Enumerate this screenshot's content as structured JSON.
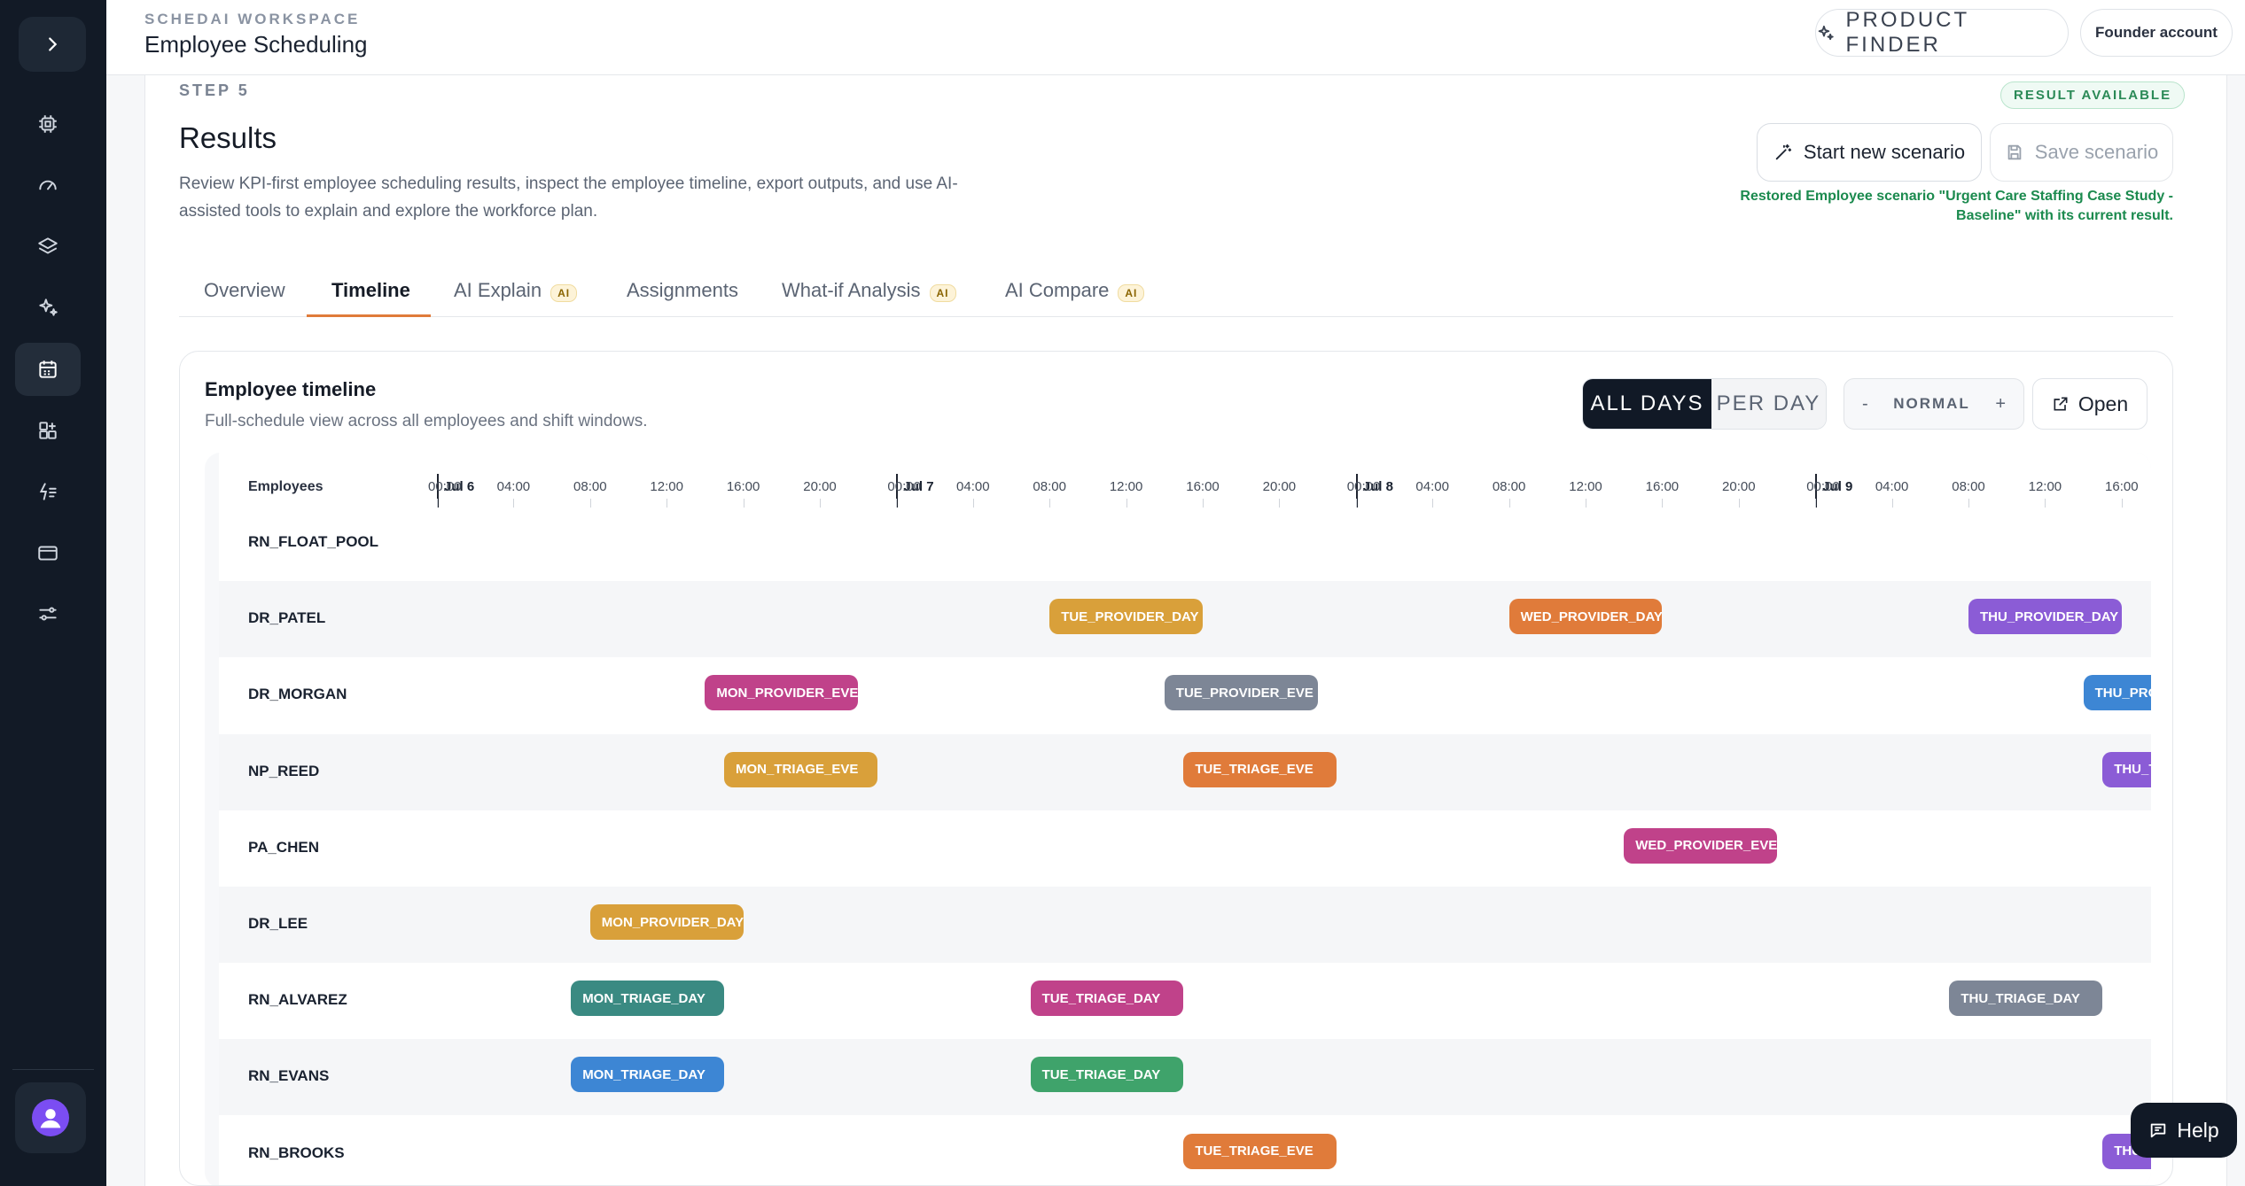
{
  "workspace": {
    "label": "SCHEDAI WORKSPACE",
    "title": "Employee Scheduling"
  },
  "topbar": {
    "product_finder": "PRODUCT FINDER",
    "account": "Founder account"
  },
  "sidebar": {
    "items": [
      {
        "icon": "chip-icon"
      },
      {
        "icon": "gauge-icon"
      },
      {
        "icon": "layers-icon"
      },
      {
        "icon": "sparkles-icon"
      },
      {
        "icon": "calendar-icon",
        "active": true
      },
      {
        "icon": "apps-icon"
      },
      {
        "icon": "zap-list-icon"
      },
      {
        "icon": "card-icon"
      },
      {
        "icon": "sliders-icon"
      }
    ]
  },
  "page": {
    "step": "STEP 5",
    "title": "Results",
    "description": "Review KPI-first employee scheduling results, inspect the employee timeline, export outputs, and use AI-assisted tools to explain and explore the workforce plan.",
    "badge": "RESULT AVAILABLE",
    "start_button": "Start new scenario",
    "save_button": "Save scenario",
    "restore_message": "Restored Employee scenario \"Urgent Care Staffing Case Study - Baseline\" with its current result."
  },
  "tabs": [
    {
      "label": "Overview",
      "ai": false
    },
    {
      "label": "Timeline",
      "ai": false,
      "active": true
    },
    {
      "label": "AI Explain",
      "ai": true
    },
    {
      "label": "Assignments",
      "ai": false
    },
    {
      "label": "What-if Analysis",
      "ai": true
    },
    {
      "label": "AI Compare",
      "ai": true
    }
  ],
  "ai_badge": "AI",
  "timeline": {
    "title": "Employee timeline",
    "subtitle": "Full-schedule view across all employees and shift windows.",
    "view_all": "ALL DAYS",
    "view_day": "PER DAY",
    "zoom_minus": "-",
    "zoom_level": "NORMAL",
    "zoom_plus": "+",
    "open": "Open",
    "employees_header": "Employees",
    "days": [
      "Jul 6",
      "Jul 7",
      "Jul 8",
      "Jul 9"
    ],
    "hour_ticks": [
      "00:00",
      "04:00",
      "08:00",
      "12:00",
      "16:00",
      "20:00"
    ],
    "rows": [
      {
        "name": "RN_FLOAT_POOL",
        "shifts": []
      },
      {
        "name": "DR_PATEL",
        "shifts": [
          {
            "label": "TUE_PROVIDER_DAY",
            "day": 1,
            "start": 8,
            "end": 16,
            "color": "#d9a03a"
          },
          {
            "label": "WED_PROVIDER_DAY",
            "day": 2,
            "start": 8,
            "end": 16,
            "color": "#e07b3a"
          },
          {
            "label": "THU_PROVIDER_DAY",
            "day": 3,
            "start": 8,
            "end": 16,
            "color": "#8b5cd6"
          }
        ]
      },
      {
        "name": "DR_MORGAN",
        "shifts": [
          {
            "label": "MON_PROVIDER_EVE",
            "day": 0,
            "start": 14,
            "end": 22,
            "color": "#c0428a"
          },
          {
            "label": "TUE_PROVIDER_EVE",
            "day": 1,
            "start": 14,
            "end": 22,
            "color": "#7d8696"
          },
          {
            "label": "THU_PROVIDER_EVE",
            "day": 3,
            "start": 14,
            "end": 22,
            "color": "#3d86d4"
          }
        ]
      },
      {
        "name": "NP_REED",
        "shifts": [
          {
            "label": "MON_TRIAGE_EVE",
            "day": 0,
            "start": 15,
            "end": 23,
            "color": "#d9a03a"
          },
          {
            "label": "TUE_TRIAGE_EVE",
            "day": 1,
            "start": 15,
            "end": 23,
            "color": "#e07b3a"
          },
          {
            "label": "THU_TRIAGE_EVE",
            "day": 3,
            "start": 15,
            "end": 23,
            "color": "#8b5cd6"
          }
        ]
      },
      {
        "name": "PA_CHEN",
        "shifts": [
          {
            "label": "WED_PROVIDER_EVE",
            "day": 2,
            "start": 14,
            "end": 22,
            "color": "#c0428a"
          }
        ]
      },
      {
        "name": "DR_LEE",
        "shifts": [
          {
            "label": "MON_PROVIDER_DAY",
            "day": 0,
            "start": 8,
            "end": 16,
            "color": "#d9a03a"
          }
        ]
      },
      {
        "name": "RN_ALVAREZ",
        "shifts": [
          {
            "label": "MON_TRIAGE_DAY",
            "day": 0,
            "start": 7,
            "end": 15,
            "color": "#3a8a82"
          },
          {
            "label": "TUE_TRIAGE_DAY",
            "day": 1,
            "start": 7,
            "end": 15,
            "color": "#c0428a"
          },
          {
            "label": "THU_TRIAGE_DAY",
            "day": 3,
            "start": 7,
            "end": 15,
            "color": "#7d8696"
          }
        ]
      },
      {
        "name": "RN_EVANS",
        "shifts": [
          {
            "label": "MON_TRIAGE_DAY",
            "day": 0,
            "start": 7,
            "end": 15,
            "color": "#3d86d4"
          },
          {
            "label": "TUE_TRIAGE_DAY",
            "day": 1,
            "start": 7,
            "end": 15,
            "color": "#3fa36b"
          }
        ]
      },
      {
        "name": "RN_BROOKS",
        "shifts": [
          {
            "label": "TUE_TRIAGE_EVE",
            "day": 1,
            "start": 15,
            "end": 23,
            "color": "#e07b3a"
          },
          {
            "label": "THU_TRIAGE_EVE",
            "day": 3,
            "start": 15,
            "end": 23,
            "color": "#8b5cd6"
          }
        ]
      }
    ]
  },
  "help": "Help"
}
